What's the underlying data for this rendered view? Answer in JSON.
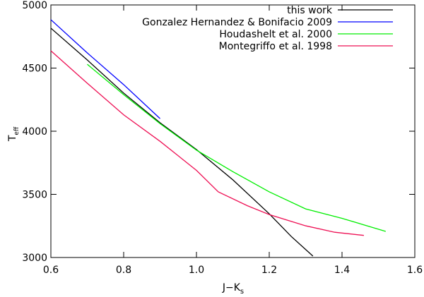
{
  "chart_data": {
    "type": "line",
    "xlabel": {
      "main": "J−K",
      "sub": "s"
    },
    "ylabel": {
      "main": "T",
      "sub": "eff"
    },
    "xlim": [
      0.6,
      1.6
    ],
    "xticks": [
      0.6,
      0.8,
      {
        "value": 1,
        "label": "1.0"
      },
      1.2,
      1.4,
      1.6
    ],
    "ylim": [
      3000,
      5000
    ],
    "yticks": [
      3000,
      3500,
      4000,
      4500,
      5000
    ],
    "legend": "upper right",
    "series": [
      {
        "name": "this work",
        "color": "#000000",
        "x": [
          0.6,
          0.7,
          0.8,
          0.9,
          1.0,
          1.1,
          1.2,
          1.26,
          1.32
        ],
        "values": [
          4816,
          4564,
          4302,
          4067,
          3855,
          3615,
          3346,
          3168,
          3011
        ]
      },
      {
        "name": "Gonzalez Hernandez & Bonifacio 2009",
        "color": "#0000ff",
        "x": [
          0.6,
          0.7,
          0.8,
          0.9
        ],
        "values": [
          4883,
          4620,
          4369,
          4100
        ]
      },
      {
        "name": "Houdashelt et al. 2000",
        "color": "#00ee00",
        "x": [
          0.7,
          0.8,
          0.9,
          1.0,
          1.1,
          1.2,
          1.3,
          1.4,
          1.52
        ],
        "values": [
          4530,
          4290,
          4060,
          3850,
          3680,
          3520,
          3385,
          3310,
          3207
        ]
      },
      {
        "name": "Montegriffo et al. 1998",
        "color": "#ee1155",
        "x": [
          0.6,
          0.7,
          0.8,
          0.9,
          1.0,
          1.06,
          1.14,
          1.2,
          1.3,
          1.38,
          1.46
        ],
        "values": [
          4637,
          4380,
          4130,
          3920,
          3690,
          3520,
          3410,
          3340,
          3251,
          3200,
          3175
        ]
      }
    ]
  }
}
